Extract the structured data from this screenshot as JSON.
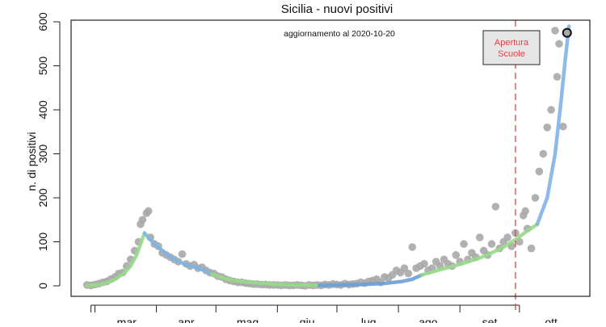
{
  "chart_data": {
    "type": "scatter",
    "title": "Sicilia - nuovi positivi",
    "subtitle": "aggiornamento al 2020-10-20",
    "xlabel": "",
    "ylabel": "n. di positivi",
    "x_unit": "days since 1 March 2020",
    "xlim": [
      -12,
      249.5
    ],
    "ylim": [
      0,
      600
    ],
    "yticks": [
      0,
      100,
      200,
      300,
      400,
      500,
      600
    ],
    "ytick_labels": [
      "0",
      "100",
      "200",
      "300",
      "400",
      "500",
      "600"
    ],
    "xticks": [
      -2,
      0,
      31,
      61,
      92,
      122,
      153,
      184,
      214
    ],
    "month_labels": [
      {
        "label": "mar",
        "day": 16
      },
      {
        "label": "apr",
        "day": 46
      },
      {
        "label": "mag",
        "day": 77
      },
      {
        "label": "giu",
        "day": 107
      },
      {
        "label": "lug",
        "day": 138
      },
      {
        "label": "ago",
        "day": 168
      },
      {
        "label": "set",
        "day": 199
      },
      {
        "label": "ott",
        "day": 230
      }
    ],
    "points": [
      [
        -4,
        2
      ],
      [
        -2,
        1
      ],
      [
        0,
        3
      ],
      [
        2,
        5
      ],
      [
        4,
        8
      ],
      [
        6,
        10
      ],
      [
        8,
        15
      ],
      [
        10,
        20
      ],
      [
        12,
        28
      ],
      [
        14,
        30
      ],
      [
        16,
        45
      ],
      [
        18,
        60
      ],
      [
        20,
        80
      ],
      [
        22,
        100
      ],
      [
        23,
        140
      ],
      [
        24,
        150
      ],
      [
        26,
        165
      ],
      [
        27,
        170
      ],
      [
        28,
        110
      ],
      [
        30,
        95
      ],
      [
        32,
        90
      ],
      [
        34,
        75
      ],
      [
        36,
        70
      ],
      [
        38,
        65
      ],
      [
        40,
        60
      ],
      [
        42,
        55
      ],
      [
        44,
        72
      ],
      [
        46,
        50
      ],
      [
        48,
        45
      ],
      [
        50,
        48
      ],
      [
        52,
        40
      ],
      [
        54,
        42
      ],
      [
        56,
        35
      ],
      [
        58,
        30
      ],
      [
        60,
        28
      ],
      [
        62,
        22
      ],
      [
        64,
        20
      ],
      [
        66,
        15
      ],
      [
        68,
        12
      ],
      [
        70,
        10
      ],
      [
        72,
        8
      ],
      [
        74,
        8
      ],
      [
        76,
        6
      ],
      [
        78,
        5
      ],
      [
        80,
        4
      ],
      [
        82,
        4
      ],
      [
        84,
        3
      ],
      [
        86,
        3
      ],
      [
        88,
        2
      ],
      [
        90,
        2
      ],
      [
        92,
        2
      ],
      [
        94,
        1
      ],
      [
        96,
        2
      ],
      [
        98,
        1
      ],
      [
        100,
        1
      ],
      [
        102,
        2
      ],
      [
        104,
        1
      ],
      [
        106,
        0
      ],
      [
        108,
        2
      ],
      [
        110,
        1
      ],
      [
        112,
        2
      ],
      [
        114,
        1
      ],
      [
        116,
        3
      ],
      [
        118,
        2
      ],
      [
        120,
        4
      ],
      [
        122,
        3
      ],
      [
        124,
        2
      ],
      [
        126,
        5
      ],
      [
        128,
        3
      ],
      [
        130,
        4
      ],
      [
        132,
        5
      ],
      [
        134,
        8
      ],
      [
        136,
        6
      ],
      [
        138,
        10
      ],
      [
        140,
        12
      ],
      [
        142,
        15
      ],
      [
        144,
        8
      ],
      [
        146,
        20
      ],
      [
        148,
        18
      ],
      [
        150,
        25
      ],
      [
        152,
        35
      ],
      [
        154,
        30
      ],
      [
        156,
        40
      ],
      [
        158,
        28
      ],
      [
        160,
        88
      ],
      [
        162,
        40
      ],
      [
        164,
        45
      ],
      [
        166,
        50
      ],
      [
        168,
        35
      ],
      [
        170,
        40
      ],
      [
        172,
        55
      ],
      [
        174,
        45
      ],
      [
        176,
        60
      ],
      [
        178,
        50
      ],
      [
        180,
        45
      ],
      [
        182,
        70
      ],
      [
        184,
        55
      ],
      [
        186,
        95
      ],
      [
        188,
        60
      ],
      [
        190,
        75
      ],
      [
        192,
        65
      ],
      [
        194,
        110
      ],
      [
        196,
        80
      ],
      [
        198,
        70
      ],
      [
        200,
        95
      ],
      [
        202,
        180
      ],
      [
        204,
        85
      ],
      [
        206,
        100
      ],
      [
        208,
        110
      ],
      [
        210,
        90
      ],
      [
        212,
        120
      ],
      [
        214,
        100
      ],
      [
        216,
        160
      ],
      [
        217,
        170
      ],
      [
        218,
        130
      ],
      [
        220,
        85
      ],
      [
        222,
        200
      ],
      [
        224,
        260
      ],
      [
        226,
        300
      ],
      [
        228,
        360
      ],
      [
        230,
        400
      ],
      [
        232,
        580
      ],
      [
        233,
        475
      ],
      [
        234,
        550
      ],
      [
        236,
        362
      ]
    ],
    "last_point": [
      238,
      575
    ],
    "fit_segments": [
      {
        "color": "#98d98a",
        "points": [
          [
            -4,
            0
          ],
          [
            0,
            2
          ],
          [
            5,
            6
          ],
          [
            10,
            14
          ],
          [
            15,
            30
          ],
          [
            18,
            45
          ],
          [
            21,
            70
          ],
          [
            23,
            95
          ],
          [
            25,
            120
          ]
        ]
      },
      {
        "color": "#7fb4e6",
        "points": [
          [
            25,
            120
          ],
          [
            28,
            105
          ],
          [
            32,
            88
          ],
          [
            36,
            72
          ],
          [
            40,
            60
          ],
          [
            45,
            50
          ],
          [
            50,
            43
          ],
          [
            55,
            35
          ],
          [
            59,
            27
          ]
        ]
      },
      {
        "color": "#98d98a",
        "points": [
          [
            59,
            27
          ],
          [
            65,
            17
          ],
          [
            70,
            12
          ],
          [
            80,
            7
          ],
          [
            90,
            4
          ],
          [
            100,
            2
          ],
          [
            113,
            1
          ]
        ]
      },
      {
        "color": "#6a9fd6",
        "points": [
          [
            113,
            1
          ],
          [
            125,
            2
          ],
          [
            135,
            3
          ],
          [
            145,
            5
          ],
          [
            155,
            10
          ],
          [
            160,
            15
          ],
          [
            165,
            25
          ]
        ]
      },
      {
        "color": "#98d98a",
        "points": [
          [
            165,
            25
          ],
          [
            175,
            38
          ],
          [
            185,
            50
          ],
          [
            195,
            65
          ],
          [
            205,
            85
          ],
          [
            212,
            105
          ],
          [
            218,
            125
          ],
          [
            223,
            140
          ]
        ]
      },
      {
        "color": "#7fb4e6",
        "points": [
          [
            223,
            140
          ],
          [
            228,
            200
          ],
          [
            232,
            300
          ],
          [
            235,
            420
          ],
          [
            237,
            510
          ],
          [
            239,
            590
          ]
        ]
      }
    ],
    "event_line": {
      "day": 212,
      "color": "#e0434a"
    },
    "legend": {
      "text_line1": "Apertura",
      "text_line2": "Scuole",
      "placement": "top-right",
      "text_color": "#e0434a",
      "fill": "#e6e6e6"
    },
    "point_color": "#a9a9a9"
  }
}
